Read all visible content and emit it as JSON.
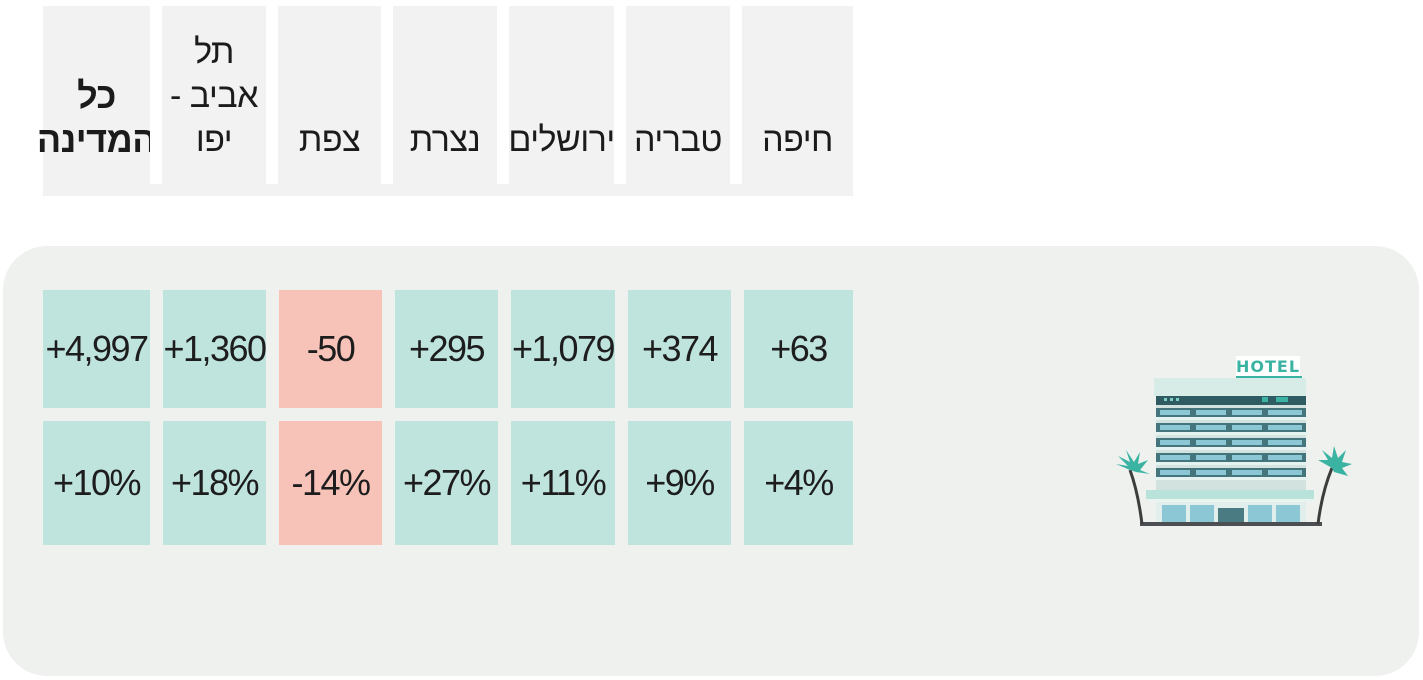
{
  "colors": {
    "positive": "#bfe3dd",
    "negative": "#f7c3b9",
    "panel": "#eff1ef",
    "header": "#f1f2f1"
  },
  "columns": [
    {
      "city": "כל המדינה",
      "count": "+4,997",
      "percent": "+10%",
      "trend": "positive",
      "bold": true
    },
    {
      "city": "תל אביב - יפו",
      "count": "+1,360",
      "percent": "+18%",
      "trend": "positive"
    },
    {
      "city": "צפת",
      "count": "-50",
      "percent": "-14%",
      "trend": "negative"
    },
    {
      "city": "נצרת",
      "count": "+295",
      "percent": "+27%",
      "trend": "positive"
    },
    {
      "city": "ירושלים",
      "count": "+1,079",
      "percent": "+11%",
      "trend": "positive"
    },
    {
      "city": "טבריה",
      "count": "+374",
      "percent": "+9%",
      "trend": "positive"
    },
    {
      "city": "חיפה",
      "count": "+63",
      "percent": "+4%",
      "trend": "positive"
    }
  ],
  "illustration": {
    "icon": "hotel-building-icon",
    "sign": "HOTEL"
  }
}
